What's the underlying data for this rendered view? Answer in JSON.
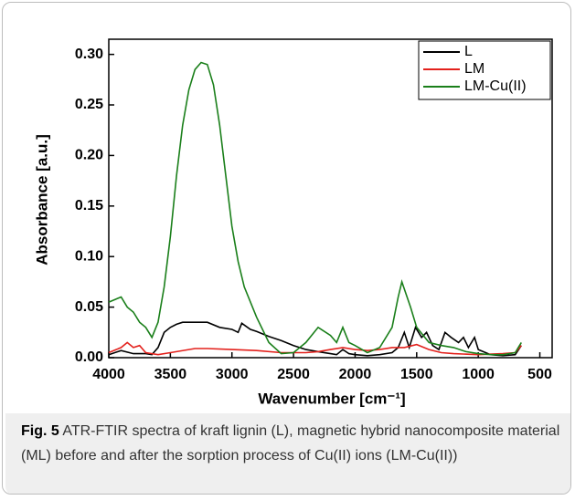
{
  "chart_data": {
    "type": "line",
    "xlabel": "Wavenumber [cm⁻¹]",
    "ylabel": "Absorbance [a.u.]",
    "xlim": [
      4000,
      400
    ],
    "ylim": [
      0,
      0.315
    ],
    "xticks": [
      4000,
      3500,
      3000,
      2500,
      2000,
      1500,
      1000,
      500
    ],
    "yticks": [
      {
        "value": 0,
        "label": "0.00"
      },
      {
        "value": 0.05,
        "label": "0.05"
      },
      {
        "value": 0.1,
        "label": "0.10"
      },
      {
        "value": 0.15,
        "label": "0.15"
      },
      {
        "value": 0.2,
        "label": "0.20"
      },
      {
        "value": 0.25,
        "label": "0.25"
      },
      {
        "value": 0.3,
        "label": "0.30"
      }
    ],
    "legend": "upper right",
    "series": [
      {
        "name": "L",
        "color": "#000000",
        "x": [
          4000,
          3900,
          3800,
          3700,
          3650,
          3600,
          3550,
          3500,
          3450,
          3400,
          3300,
          3200,
          3100,
          3000,
          2950,
          2920,
          2850,
          2800,
          2700,
          2600,
          2500,
          2400,
          2300,
          2200,
          2150,
          2100,
          2050,
          2000,
          1900,
          1800,
          1700,
          1650,
          1600,
          1560,
          1510,
          1460,
          1420,
          1370,
          1320,
          1270,
          1220,
          1160,
          1120,
          1080,
          1030,
          1000,
          900,
          800,
          700,
          650
        ],
        "values": [
          0.003,
          0.007,
          0.004,
          0.004,
          0.003,
          0.01,
          0.025,
          0.03,
          0.033,
          0.035,
          0.035,
          0.035,
          0.03,
          0.028,
          0.025,
          0.034,
          0.028,
          0.026,
          0.021,
          0.017,
          0.012,
          0.008,
          0.006,
          0.004,
          0.003,
          0.008,
          0.004,
          0.003,
          0.002,
          0.003,
          0.005,
          0.01,
          0.025,
          0.01,
          0.03,
          0.02,
          0.025,
          0.012,
          0.008,
          0.025,
          0.02,
          0.015,
          0.02,
          0.01,
          0.02,
          0.008,
          0.003,
          0.002,
          0.003,
          0.012
        ]
      },
      {
        "name": "LM",
        "color": "#e3211c",
        "x": [
          4000,
          3900,
          3850,
          3800,
          3750,
          3700,
          3600,
          3500,
          3300,
          3200,
          3000,
          2800,
          2600,
          2400,
          2300,
          2200,
          2100,
          2000,
          1900,
          1800,
          1700,
          1600,
          1500,
          1400,
          1300,
          1200,
          1000,
          800,
          700,
          650
        ],
        "values": [
          0.005,
          0.01,
          0.015,
          0.01,
          0.012,
          0.005,
          0.003,
          0.005,
          0.009,
          0.009,
          0.008,
          0.007,
          0.005,
          0.005,
          0.006,
          0.008,
          0.01,
          0.008,
          0.007,
          0.008,
          0.01,
          0.01,
          0.013,
          0.008,
          0.005,
          0.004,
          0.003,
          0.004,
          0.005,
          0.012
        ]
      },
      {
        "name": "LM-Cu(II)",
        "color": "#1a7f1a",
        "x": [
          4000,
          3900,
          3850,
          3800,
          3750,
          3700,
          3650,
          3600,
          3550,
          3500,
          3450,
          3400,
          3350,
          3300,
          3250,
          3200,
          3150,
          3100,
          3050,
          3000,
          2950,
          2900,
          2800,
          2700,
          2600,
          2500,
          2400,
          2300,
          2200,
          2150,
          2100,
          2050,
          2000,
          1900,
          1800,
          1700,
          1650,
          1620,
          1550,
          1500,
          1400,
          1300,
          1200,
          1100,
          1000,
          900,
          800,
          700,
          650
        ],
        "values": [
          0.055,
          0.06,
          0.05,
          0.045,
          0.035,
          0.03,
          0.02,
          0.035,
          0.07,
          0.12,
          0.18,
          0.23,
          0.265,
          0.285,
          0.292,
          0.29,
          0.27,
          0.23,
          0.18,
          0.13,
          0.095,
          0.07,
          0.04,
          0.015,
          0.004,
          0.005,
          0.015,
          0.03,
          0.022,
          0.015,
          0.03,
          0.015,
          0.012,
          0.005,
          0.01,
          0.03,
          0.06,
          0.075,
          0.05,
          0.03,
          0.015,
          0.012,
          0.01,
          0.006,
          0.004,
          0.003,
          0.003,
          0.005,
          0.015
        ]
      }
    ]
  },
  "caption": {
    "label": "Fig. 5",
    "text": "ATR-FTIR spectra of kraft lignin (L), magnetic hybrid nanocomposite material (ML) before and after the sorption process of Cu(II) ions (LM-Cu(II))"
  }
}
